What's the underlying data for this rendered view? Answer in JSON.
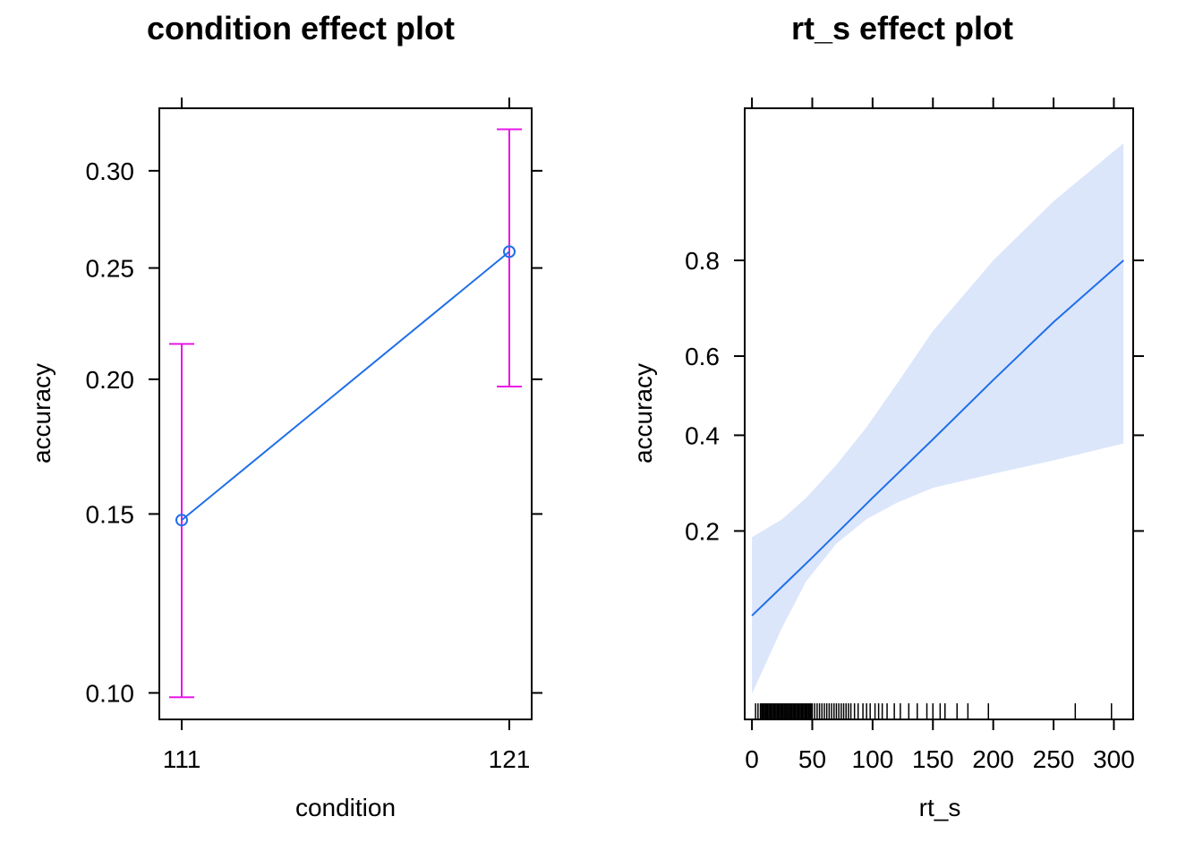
{
  "chart_data": [
    {
      "type": "line",
      "title": "condition effect plot",
      "xlabel": "condition",
      "ylabel": "accuracy",
      "categories": [
        "111",
        "121"
      ],
      "series": [
        {
          "values": [
            0.148,
            0.258
          ],
          "lower": [
            0.099,
            0.197
          ],
          "upper": [
            0.215,
            0.323
          ]
        }
      ],
      "y_scale": "logit",
      "yticks": [
        0.1,
        0.15,
        0.2,
        0.25,
        0.3
      ],
      "ytick_labels": [
        "0.10",
        "0.15",
        "0.20",
        "0.25",
        "0.30"
      ],
      "ylim": [
        0.094,
        0.335
      ],
      "grid": false,
      "colors": {
        "line": "#1f6fe8",
        "errorbar": "#e817e8"
      }
    },
    {
      "type": "line",
      "title": "rt_s effect plot",
      "xlabel": "rt_s",
      "ylabel": "accuracy",
      "xlim": [
        -6,
        316
      ],
      "xticks": [
        0,
        50,
        100,
        150,
        200,
        250,
        300
      ],
      "y_scale": "logit",
      "yticks": [
        0.2,
        0.4,
        0.6,
        0.8
      ],
      "ytick_labels": [
        "0.2",
        "0.4",
        "0.6",
        "0.8"
      ],
      "ylim": [
        0.035,
        0.95
      ],
      "grid": false,
      "fit": {
        "x": [
          0,
          50,
          100,
          150,
          200,
          250,
          308
        ],
        "y": [
          0.095,
          0.16,
          0.26,
          0.39,
          0.54,
          0.68,
          0.8
        ]
      },
      "band": {
        "x": [
          0,
          25,
          45,
          70,
          95,
          120,
          150,
          200,
          250,
          308
        ],
        "lower": [
          0.045,
          0.085,
          0.13,
          0.18,
          0.22,
          0.25,
          0.28,
          0.31,
          0.34,
          0.38
        ],
        "upper": [
          0.19,
          0.22,
          0.26,
          0.33,
          0.42,
          0.53,
          0.66,
          0.8,
          0.88,
          0.93
        ]
      },
      "rug": [
        3,
        5,
        7,
        8,
        9,
        10,
        11,
        12,
        13,
        14,
        15,
        16,
        17,
        18,
        19,
        20,
        21,
        22,
        23,
        24,
        25,
        26,
        27,
        28,
        29,
        30,
        31,
        32,
        33,
        34,
        35,
        36,
        37,
        38,
        39,
        40,
        41,
        42,
        43,
        44,
        45,
        46,
        47,
        48,
        49,
        50,
        52,
        54,
        56,
        58,
        60,
        62,
        64,
        66,
        68,
        70,
        72,
        74,
        76,
        78,
        80,
        82,
        85,
        88,
        92,
        95,
        98,
        102,
        105,
        108,
        112,
        118,
        123,
        130,
        137,
        145,
        150,
        156,
        160,
        170,
        179,
        196,
        268,
        298
      ],
      "colors": {
        "line": "#1f6fe8",
        "band": "#dce6fb",
        "rug": "#000000"
      }
    }
  ]
}
